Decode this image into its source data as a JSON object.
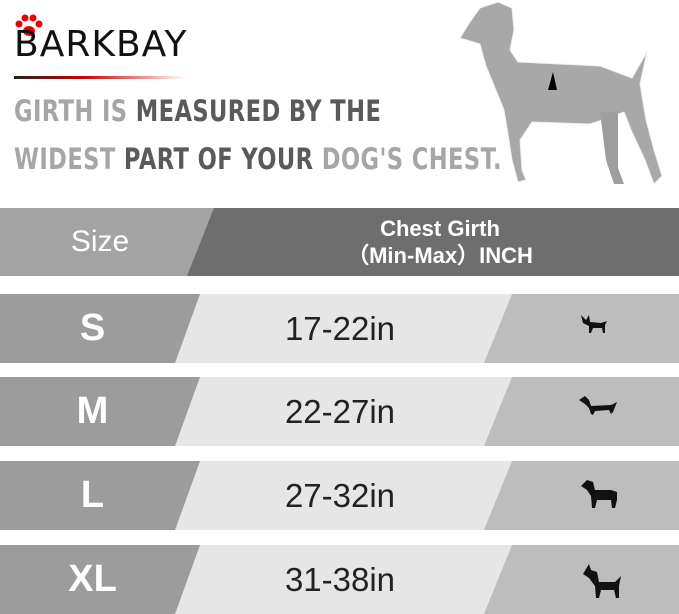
{
  "brand": {
    "logo": "BARKBAY",
    "accent": "#e00000"
  },
  "headline": {
    "line1": [
      {
        "t": "GIRTH IS ",
        "tone": "lt"
      },
      {
        "t": "MEASURED BY THE",
        "tone": "dk"
      }
    ],
    "line2": [
      {
        "t": "WIDEST ",
        "tone": "lt"
      },
      {
        "t": "PART OF YOUR ",
        "tone": "dk"
      },
      {
        "t": "DOG'S CHEST.",
        "tone": "lt"
      }
    ]
  },
  "table": {
    "header": {
      "size": "Size",
      "girth_line1": "Chest Girth",
      "girth_line2": "（Min-Max）INCH"
    },
    "rows": [
      {
        "size": "S",
        "girth": "17-22in",
        "icon": "chihuahua-icon"
      },
      {
        "size": "M",
        "girth": "22-27in",
        "icon": "dachshund-icon"
      },
      {
        "size": "L",
        "girth": "27-32in",
        "icon": "labrador-icon"
      },
      {
        "size": "XL",
        "girth": "31-38in",
        "icon": "great-dane-icon"
      }
    ]
  },
  "colors": {
    "header_left": "#a3a3a3",
    "header_right": "#6e6e6e",
    "size_col": "#9c9c9c",
    "girth_col": "#e6e6e6",
    "icon_col": "#bdbdbd"
  }
}
